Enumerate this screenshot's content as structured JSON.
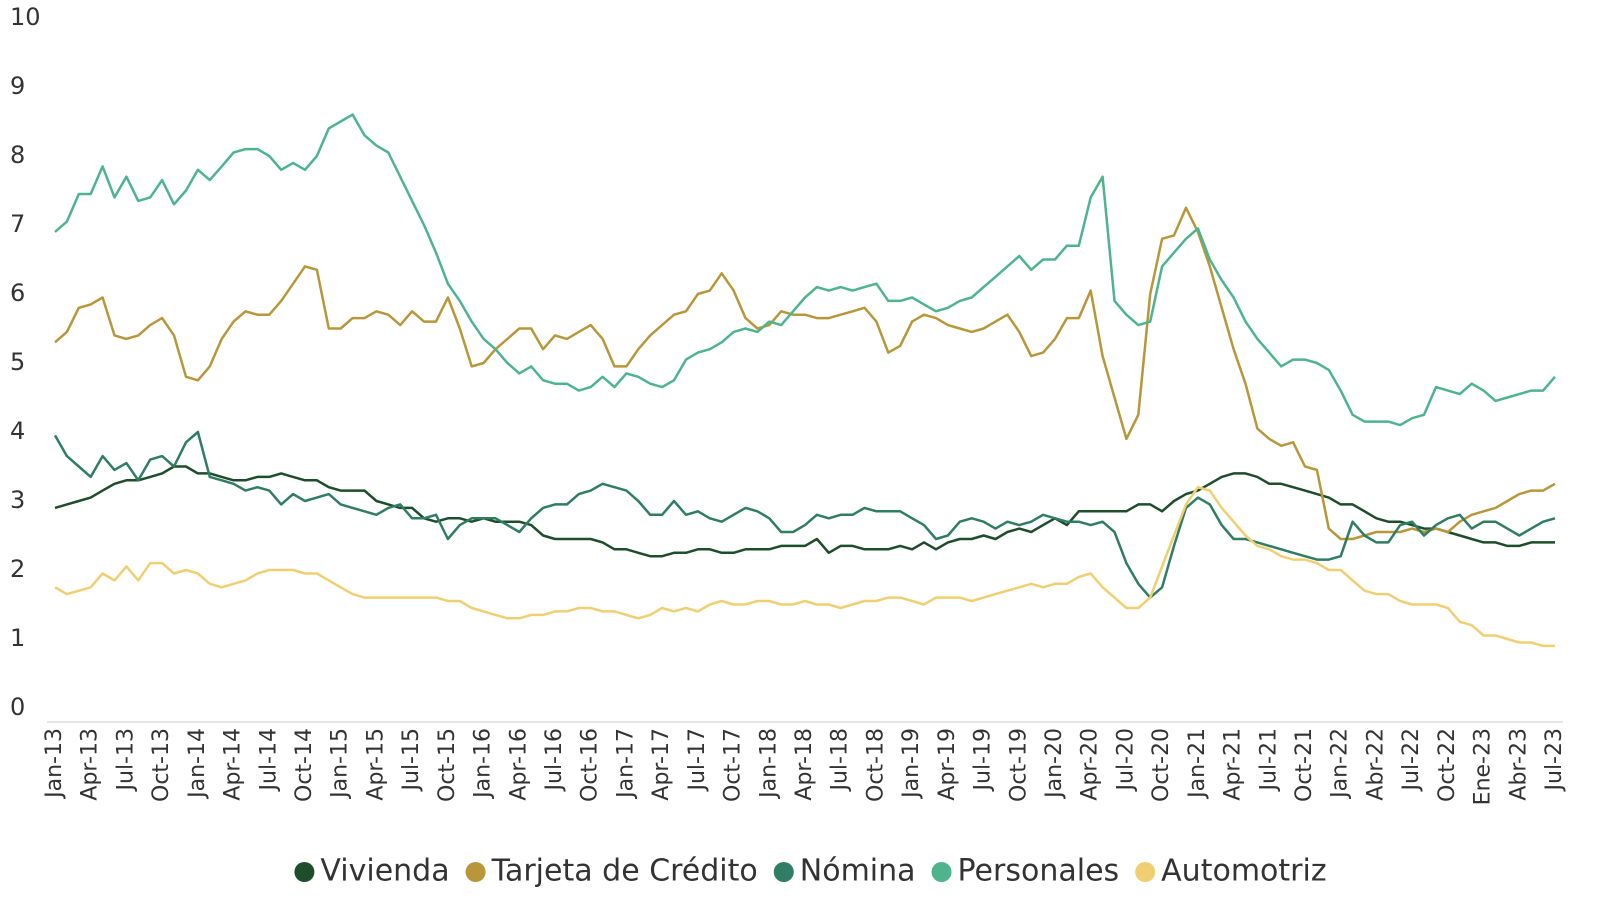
{
  "chart_data": {
    "type": "line",
    "categories": [
      "Jan-13",
      null,
      null,
      "Apr-13",
      null,
      null,
      "Jul-13",
      null,
      null,
      "Oct-13",
      null,
      null,
      "Jan-14",
      null,
      null,
      "Apr-14",
      null,
      null,
      "Jul-14",
      null,
      null,
      "Oct-14",
      null,
      null,
      "Jan-15",
      null,
      null,
      "Apr-15",
      null,
      null,
      "Jul-15",
      null,
      null,
      "Oct-15",
      null,
      null,
      "Jan-16",
      null,
      null,
      "Apr-16",
      null,
      null,
      "Jul-16",
      null,
      null,
      "Oct-16",
      null,
      null,
      "Jan-17",
      null,
      null,
      "Apr-17",
      null,
      null,
      "Jul-17",
      null,
      null,
      "Oct-17",
      null,
      null,
      "Jan-18",
      null,
      null,
      "Apr-18",
      null,
      null,
      "Jul-18",
      null,
      null,
      "Oct-18",
      null,
      null,
      "Jan-19",
      null,
      null,
      "Apr-19",
      null,
      null,
      "Jul-19",
      null,
      null,
      "Oct-19",
      null,
      null,
      "Jan-20",
      null,
      null,
      "Apr-20",
      null,
      null,
      "Jul-20",
      null,
      null,
      "Oct-20",
      null,
      null,
      "Jan-21",
      null,
      null,
      "Apr-21",
      null,
      null,
      "Jul-21",
      null,
      null,
      "Oct-21",
      null,
      null,
      "Jan-22",
      null,
      null,
      "Abr-22",
      null,
      null,
      "Jul-22",
      null,
      null,
      "Oct-22",
      null,
      null,
      "Ene-23",
      null,
      null,
      "Abr-23",
      null,
      null,
      "Jul-23"
    ],
    "series": [
      {
        "name": "Vivienda",
        "color": "#1e4d2b",
        "values": [
          2.9,
          2.95,
          3.0,
          3.05,
          3.15,
          3.25,
          3.3,
          3.3,
          3.35,
          3.4,
          3.5,
          3.5,
          3.4,
          3.4,
          3.35,
          3.3,
          3.3,
          3.35,
          3.35,
          3.4,
          3.35,
          3.3,
          3.3,
          3.2,
          3.15,
          3.15,
          3.15,
          3.0,
          2.95,
          2.9,
          2.9,
          2.75,
          2.7,
          2.75,
          2.75,
          2.7,
          2.75,
          2.7,
          2.7,
          2.7,
          2.65,
          2.5,
          2.45,
          2.45,
          2.45,
          2.45,
          2.4,
          2.3,
          2.3,
          2.25,
          2.2,
          2.2,
          2.25,
          2.25,
          2.3,
          2.3,
          2.25,
          2.25,
          2.3,
          2.3,
          2.3,
          2.35,
          2.35,
          2.35,
          2.45,
          2.25,
          2.35,
          2.35,
          2.3,
          2.3,
          2.3,
          2.35,
          2.3,
          2.4,
          2.3,
          2.4,
          2.45,
          2.45,
          2.5,
          2.45,
          2.55,
          2.6,
          2.55,
          2.65,
          2.75,
          2.65,
          2.85,
          2.85,
          2.85,
          2.85,
          2.85,
          2.95,
          2.95,
          2.85,
          3.0,
          3.1,
          3.15,
          3.25,
          3.35,
          3.4,
          3.4,
          3.35,
          3.25,
          3.25,
          3.2,
          3.15,
          3.1,
          3.05,
          2.95,
          2.95,
          2.85,
          2.75,
          2.7,
          2.7,
          2.65,
          2.6,
          2.6,
          2.55,
          2.5,
          2.45,
          2.4,
          2.4,
          2.35,
          2.35,
          2.4,
          2.4,
          2.4
        ]
      },
      {
        "name": "Tarjeta de Crédito",
        "color": "#b8963a",
        "values": [
          5.3,
          5.45,
          5.8,
          5.85,
          5.95,
          5.4,
          5.35,
          5.4,
          5.55,
          5.65,
          5.4,
          4.8,
          4.75,
          4.95,
          5.35,
          5.6,
          5.75,
          5.7,
          5.7,
          5.9,
          6.15,
          6.4,
          6.35,
          5.5,
          5.5,
          5.65,
          5.65,
          5.75,
          5.7,
          5.55,
          5.75,
          5.6,
          5.6,
          5.95,
          5.5,
          4.95,
          5.0,
          5.2,
          5.35,
          5.5,
          5.5,
          5.2,
          5.4,
          5.35,
          5.45,
          5.55,
          5.35,
          4.95,
          4.95,
          5.2,
          5.4,
          5.55,
          5.7,
          5.75,
          6.0,
          6.05,
          6.3,
          6.05,
          5.65,
          5.5,
          5.55,
          5.75,
          5.7,
          5.7,
          5.65,
          5.65,
          5.7,
          5.75,
          5.8,
          5.6,
          5.15,
          5.25,
          5.6,
          5.7,
          5.65,
          5.55,
          5.5,
          5.45,
          5.5,
          5.6,
          5.7,
          5.45,
          5.1,
          5.15,
          5.35,
          5.65,
          5.65,
          6.05,
          5.1,
          4.5,
          3.9,
          4.25,
          6.0,
          6.8,
          6.85,
          7.25,
          6.9,
          6.4,
          5.8,
          5.2,
          4.7,
          4.05,
          3.9,
          3.8,
          3.85,
          3.5,
          3.45,
          2.6,
          2.45,
          2.45,
          2.5,
          2.55,
          2.55,
          2.55,
          2.6,
          2.55,
          2.6,
          2.55,
          2.7,
          2.8,
          2.85,
          2.9,
          3.0,
          3.1,
          3.15,
          3.15,
          3.25
        ]
      },
      {
        "name": "Nómina",
        "color": "#2f7d63",
        "values": [
          3.95,
          3.65,
          3.5,
          3.35,
          3.65,
          3.45,
          3.55,
          3.3,
          3.6,
          3.65,
          3.5,
          3.85,
          4.0,
          3.35,
          3.3,
          3.25,
          3.15,
          3.2,
          3.15,
          2.95,
          3.1,
          3.0,
          3.05,
          3.1,
          2.95,
          2.9,
          2.85,
          2.8,
          2.9,
          2.95,
          2.75,
          2.75,
          2.8,
          2.45,
          2.65,
          2.75,
          2.75,
          2.75,
          2.65,
          2.55,
          2.75,
          2.9,
          2.95,
          2.95,
          3.1,
          3.15,
          3.25,
          3.2,
          3.15,
          3.0,
          2.8,
          2.8,
          3.0,
          2.8,
          2.85,
          2.75,
          2.7,
          2.8,
          2.9,
          2.85,
          2.75,
          2.55,
          2.55,
          2.65,
          2.8,
          2.75,
          2.8,
          2.8,
          2.9,
          2.85,
          2.85,
          2.85,
          2.75,
          2.65,
          2.45,
          2.5,
          2.7,
          2.75,
          2.7,
          2.6,
          2.7,
          2.65,
          2.7,
          2.8,
          2.75,
          2.7,
          2.7,
          2.65,
          2.7,
          2.55,
          2.1,
          1.8,
          1.6,
          1.75,
          2.35,
          2.9,
          3.05,
          2.95,
          2.65,
          2.45,
          2.45,
          2.4,
          2.35,
          2.3,
          2.25,
          2.2,
          2.15,
          2.15,
          2.2,
          2.7,
          2.5,
          2.4,
          2.4,
          2.65,
          2.7,
          2.5,
          2.65,
          2.75,
          2.8,
          2.6,
          2.7,
          2.7,
          2.6,
          2.5,
          2.6,
          2.7,
          2.75
        ]
      },
      {
        "name": "Personales",
        "color": "#4db48e",
        "values": [
          6.9,
          7.05,
          7.45,
          7.45,
          7.85,
          7.4,
          7.7,
          7.35,
          7.4,
          7.65,
          7.3,
          7.5,
          7.8,
          7.65,
          7.85,
          8.05,
          8.1,
          8.1,
          8.0,
          7.8,
          7.9,
          7.8,
          8.0,
          8.4,
          8.5,
          8.6,
          8.3,
          8.15,
          8.05,
          7.7,
          7.35,
          7.0,
          6.6,
          6.15,
          5.9,
          5.6,
          5.35,
          5.2,
          5.0,
          4.85,
          4.95,
          4.75,
          4.7,
          4.7,
          4.6,
          4.65,
          4.8,
          4.65,
          4.85,
          4.8,
          4.7,
          4.65,
          4.75,
          5.05,
          5.15,
          5.2,
          5.3,
          5.45,
          5.5,
          5.45,
          5.6,
          5.55,
          5.75,
          5.95,
          6.1,
          6.05,
          6.1,
          6.05,
          6.1,
          6.15,
          5.9,
          5.9,
          5.95,
          5.85,
          5.75,
          5.8,
          5.9,
          5.95,
          6.1,
          6.25,
          6.4,
          6.55,
          6.35,
          6.5,
          6.5,
          6.7,
          6.7,
          7.4,
          7.7,
          5.9,
          5.7,
          5.55,
          5.6,
          6.4,
          6.6,
          6.8,
          6.95,
          6.5,
          6.2,
          5.95,
          5.6,
          5.35,
          5.15,
          4.95,
          5.05,
          5.05,
          5.0,
          4.9,
          4.6,
          4.25,
          4.15,
          4.15,
          4.15,
          4.1,
          4.2,
          4.25,
          4.65,
          4.6,
          4.55,
          4.7,
          4.6,
          4.45,
          4.5,
          4.55,
          4.6,
          4.6,
          4.8
        ]
      },
      {
        "name": "Automotriz",
        "color": "#f0cf72",
        "values": [
          1.75,
          1.65,
          1.7,
          1.75,
          1.95,
          1.85,
          2.05,
          1.85,
          2.1,
          2.1,
          1.95,
          2.0,
          1.95,
          1.8,
          1.75,
          1.8,
          1.85,
          1.95,
          2.0,
          2.0,
          2.0,
          1.95,
          1.95,
          1.85,
          1.75,
          1.65,
          1.6,
          1.6,
          1.6,
          1.6,
          1.6,
          1.6,
          1.6,
          1.55,
          1.55,
          1.45,
          1.4,
          1.35,
          1.3,
          1.3,
          1.35,
          1.35,
          1.4,
          1.4,
          1.45,
          1.45,
          1.4,
          1.4,
          1.35,
          1.3,
          1.35,
          1.45,
          1.4,
          1.45,
          1.4,
          1.5,
          1.55,
          1.5,
          1.5,
          1.55,
          1.55,
          1.5,
          1.5,
          1.55,
          1.5,
          1.5,
          1.45,
          1.5,
          1.55,
          1.55,
          1.6,
          1.6,
          1.55,
          1.5,
          1.6,
          1.6,
          1.6,
          1.55,
          1.6,
          1.65,
          1.7,
          1.75,
          1.8,
          1.75,
          1.8,
          1.8,
          1.9,
          1.95,
          1.75,
          1.6,
          1.45,
          1.45,
          1.6,
          2.05,
          2.5,
          2.95,
          3.2,
          3.15,
          2.9,
          2.7,
          2.5,
          2.35,
          2.3,
          2.2,
          2.15,
          2.15,
          2.1,
          2.0,
          2.0,
          1.85,
          1.7,
          1.65,
          1.65,
          1.55,
          1.5,
          1.5,
          1.5,
          1.45,
          1.25,
          1.2,
          1.05,
          1.05,
          1.0,
          0.95,
          0.95,
          0.9,
          0.9
        ]
      }
    ],
    "ylim": [
      0,
      10
    ],
    "yticks": [
      0,
      1,
      2,
      3,
      4,
      5,
      6,
      7,
      8,
      9,
      10
    ],
    "grid": false,
    "legend": "bottom"
  }
}
